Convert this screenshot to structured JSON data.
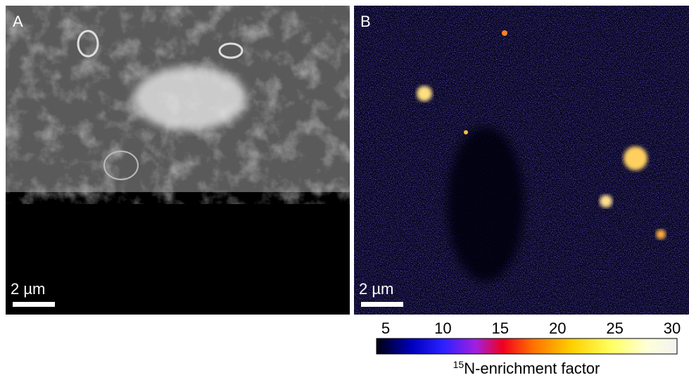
{
  "panels": [
    {
      "label": "A",
      "scale_bar": "2 µm"
    },
    {
      "label": "B",
      "scale_bar": "2 µm"
    }
  ],
  "colorbar": {
    "lim": [
      5,
      30
    ],
    "ticks": [
      5,
      10,
      15,
      20,
      25,
      30
    ],
    "label_superscript": "15",
    "label": "N-enrichment factor"
  }
}
